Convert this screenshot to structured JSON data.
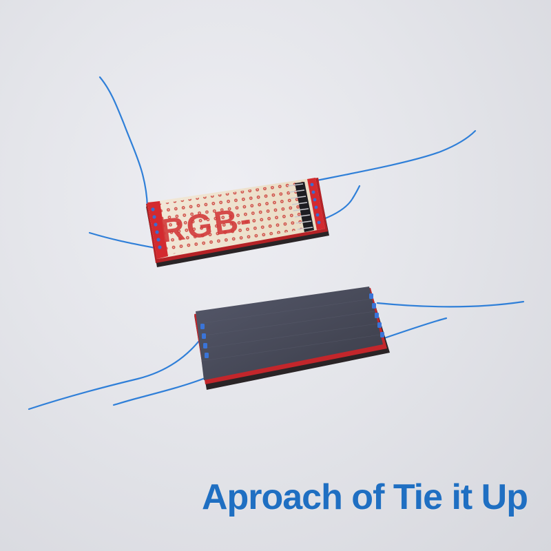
{
  "caption": "Aproach of Tie it Up",
  "board_marking": "RGB-",
  "colors": {
    "caption": "#1f6fc2",
    "wire": "#2f7fd8",
    "pcb_red": "#d32a2f",
    "board_surface": "#efe3cf",
    "solar_panel": "#474a58",
    "background": "#e4e5ea"
  }
}
